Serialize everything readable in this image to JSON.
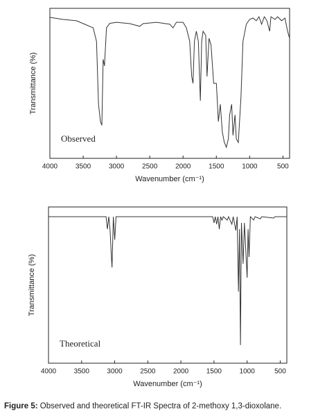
{
  "chart_data": [
    {
      "type": "line",
      "x_label": "Wavenumber (cm⁻¹)",
      "y_label": "Transmittance (%)",
      "annotation": "Observed",
      "color": "#333333",
      "xlim": [
        4000,
        400
      ],
      "ylim": [
        0,
        100
      ],
      "xticks": [
        4000,
        3500,
        3000,
        2500,
        2000,
        1500,
        1000,
        500
      ],
      "x": [
        4000,
        3800,
        3600,
        3450,
        3350,
        3300,
        3270,
        3240,
        3220,
        3200,
        3180,
        3150,
        3100,
        3000,
        2800,
        2650,
        2600,
        2400,
        2200,
        2150,
        2100,
        2000,
        1950,
        1900,
        1870,
        1850,
        1830,
        1800,
        1770,
        1740,
        1720,
        1700,
        1660,
        1640,
        1610,
        1580,
        1540,
        1500,
        1470,
        1440,
        1410,
        1380,
        1350,
        1320,
        1300,
        1270,
        1250,
        1220,
        1200,
        1170,
        1130,
        1100,
        1050,
        1000,
        950,
        900,
        860,
        820,
        780,
        740,
        700,
        680,
        620,
        580,
        520,
        470,
        430,
        400
      ],
      "values": [
        94,
        92.6,
        91.7,
        88.9,
        87,
        78,
        36,
        24.5,
        22,
        66,
        61.6,
        87,
        90,
        90.7,
        89.8,
        88,
        89.8,
        90.7,
        89.4,
        87,
        90.7,
        90.7,
        87,
        78,
        54.6,
        50,
        78,
        84.7,
        78,
        38.4,
        78,
        84.7,
        82,
        54.6,
        80,
        75.5,
        50,
        50,
        24.5,
        36,
        17.6,
        10.6,
        7.4,
        13,
        29,
        36,
        15.3,
        29,
        13,
        10.6,
        40.7,
        78,
        89.4,
        92.6,
        93.5,
        91.7,
        94.4,
        89.4,
        94.4,
        91.7,
        84.7,
        94.4,
        92.6,
        94.4,
        91.7,
        93.5,
        84.7,
        80
      ]
    },
    {
      "type": "line",
      "x_label": "Wavenumber (cm⁻¹)",
      "y_label": "Transmittance (%)",
      "annotation": "Theoretical",
      "color": "#333333",
      "xlim": [
        4000,
        400
      ],
      "ylim": [
        0,
        100
      ],
      "xticks": [
        4000,
        3500,
        3000,
        2500,
        2000,
        1500,
        1000,
        500
      ],
      "x": [
        4000,
        3130,
        3110,
        3090,
        3070,
        3050,
        3040,
        3020,
        3000,
        2980,
        1520,
        1500,
        1480,
        1460,
        1440,
        1420,
        1400,
        1380,
        1360,
        1300,
        1280,
        1230,
        1210,
        1170,
        1150,
        1130,
        1115,
        1100,
        1085,
        1060,
        1040,
        1000,
        985,
        970,
        950,
        900,
        880,
        800,
        780,
        600,
        580,
        400
      ],
      "values": [
        93.8,
        93.8,
        85.8,
        93.8,
        84.9,
        68,
        61.3,
        93.8,
        79,
        93.8,
        93.8,
        89.8,
        93.8,
        89,
        93.8,
        85.8,
        93.8,
        91.6,
        93.8,
        91.6,
        93.8,
        89,
        93.8,
        85,
        93.8,
        45.8,
        85.8,
        11.6,
        89.8,
        63.6,
        89.8,
        54.7,
        85.8,
        68,
        93.8,
        91.6,
        93.8,
        92.4,
        93.8,
        92.9,
        93.8,
        93.8
      ]
    }
  ],
  "caption": {
    "label": "Figure 5:",
    "text": "Observed and theoretical FT-IR Spectra of 2-methoxy 1,3-dioxolane."
  }
}
